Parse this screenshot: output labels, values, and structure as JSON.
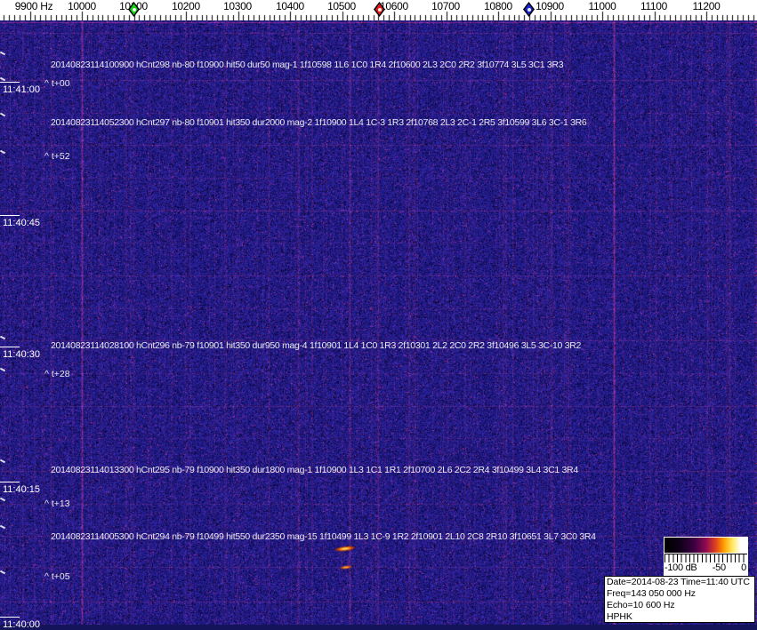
{
  "ruler": {
    "labels": [
      "9900 Hz",
      "10000",
      "10100",
      "10200",
      "10300",
      "10400",
      "10500",
      "10600",
      "10700",
      "10800",
      "10900",
      "11000",
      "11100",
      "11200"
    ],
    "markers": [
      {
        "name": "green-marker",
        "color": "#17cf17"
      },
      {
        "name": "red-marker",
        "color": "#e01818"
      },
      {
        "name": "blue-marker",
        "color": "#1726cf"
      }
    ]
  },
  "timestamps": [
    "11:41:00",
    "11:40:45",
    "11:40:30",
    "11:40:15",
    "11:40:00"
  ],
  "annotations": [
    {
      "text": "20140823114100900 hCnt298 nb-80 f10900 hit50 dur50 mag-1 1f10598 1L6 1C0 1R4 2f10600 2L3 2C0 2R2 3f10774 3L5 3C1 3R3",
      "t_label": "^ t+00"
    },
    {
      "text": "20140823114052300 hCnt297 nb-80 f10901 hit350 dur2000 mag-2 1f10900 1L4 1C-3 1R3 2f10768 2L3 2C-1 2R5 3f10599 3L6 3C-1 3R6",
      "t_label": "^ t+52"
    },
    {
      "text": "20140823114028100 hCnt296 nb-79 f10901 hit350 dur950 mag-4 1f10901 1L4 1C0 1R3 2f10301 2L2 2C0 2R2 3f10496 3L5 3C-10 3R2",
      "t_label": "^ t+28"
    },
    {
      "text": "20140823114013300 hCnt295 nb-79 f10900 hit350 dur1800 mag-1 1f10900 1L3 1C1 1R1 2f10700 2L6 2C2 2R4 3f10499 3L4 3C1 3R4",
      "t_label": "^ t+13"
    },
    {
      "text": "20140823114005300 hCnt294 nb-79 f10499 hit550 dur2350 mag-15 1f10499 1L3 1C-9 1R2 2f10901 2L10 2C8 2R10 3f10651 3L7 3C0 3R4",
      "t_label": "^ t+05"
    }
  ],
  "legend": {
    "min_label": "-100 dB",
    "mid_label": "-50",
    "max_label": "0"
  },
  "info_box": {
    "lines": [
      "Date=2014-08-23 Time=11:40 UTC",
      "Freq=143 050 000 Hz",
      "Echo=10 600 Hz",
      "HPHK"
    ]
  },
  "colors": {
    "spectrogram_base": "#1d1a7c",
    "line_pink": "#d05888",
    "echo_orange": "#ffa820",
    "ruler_bg": "#ffffff"
  }
}
